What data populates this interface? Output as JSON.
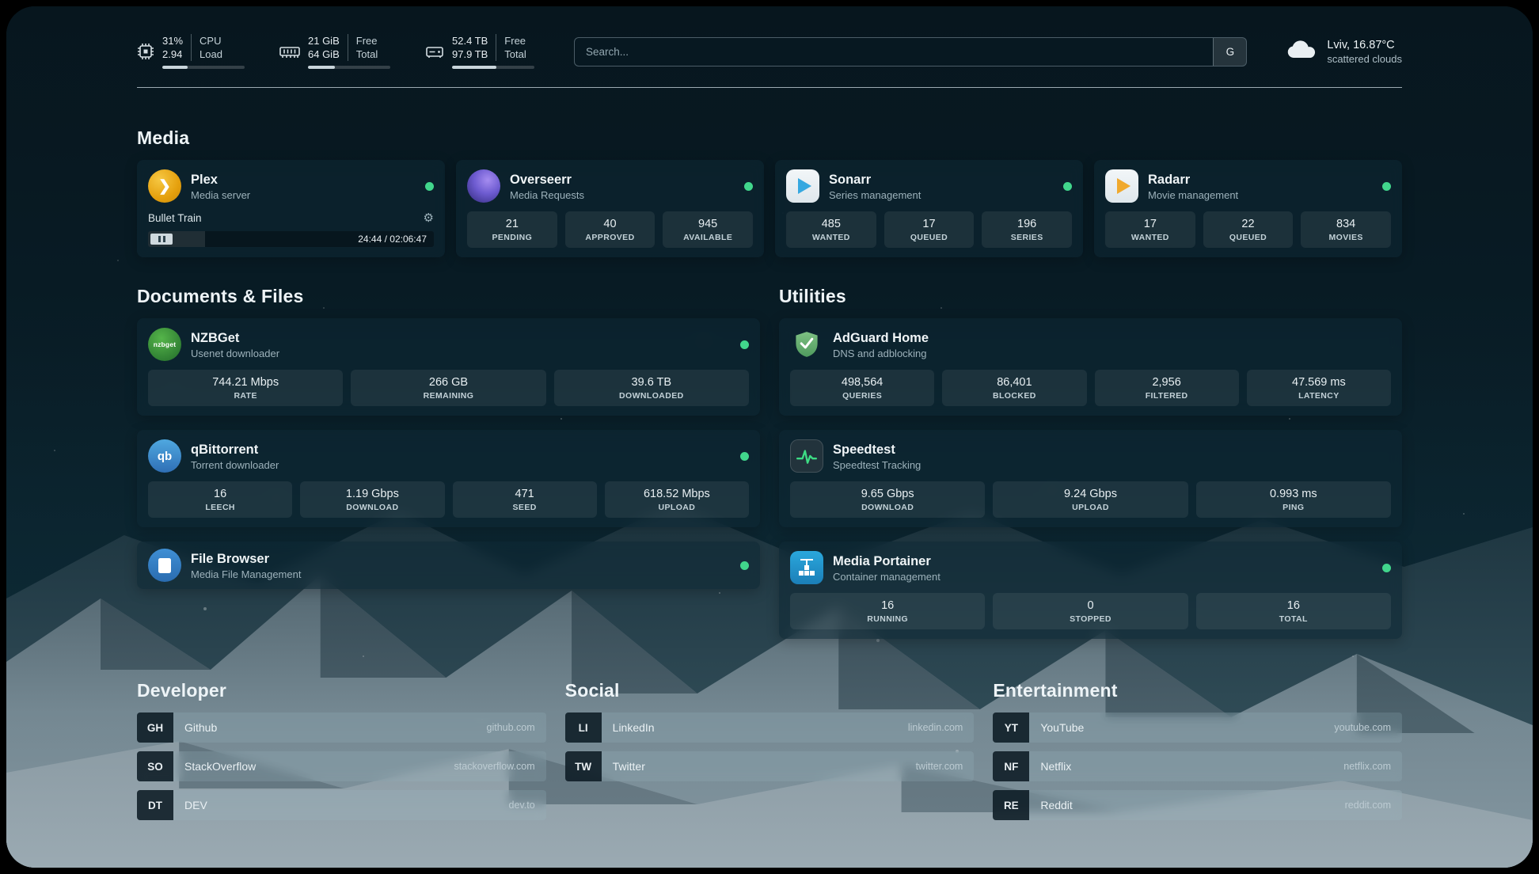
{
  "icons": {
    "plex_chevron": "❯",
    "gear": "⚙",
    "nzbget_text": "nzbget",
    "qbittorrent_text": "qb"
  },
  "topbar": {
    "cpu": {
      "value_top": "31%",
      "value_bottom": "2.94",
      "label_top": "CPU",
      "label_bottom": "Load",
      "percent": 31
    },
    "ram": {
      "value_top": "21 GiB",
      "value_bottom": "64 GiB",
      "label_top": "Free",
      "label_bottom": "Total",
      "percent": 33
    },
    "disk": {
      "value_top": "52.4 TB",
      "value_bottom": "97.9 TB",
      "label_top": "Free",
      "label_bottom": "Total",
      "percent": 54
    },
    "search": {
      "placeholder": "Search...",
      "button_label": "G"
    },
    "weather": {
      "location": "Lviv, 16.87°C",
      "condition": "scattered clouds"
    }
  },
  "sections": {
    "media": {
      "title": "Media",
      "plex": {
        "name": "Plex",
        "subtitle": "Media server",
        "now_playing": "Bullet Train",
        "time": "24:44 / 02:06:47",
        "progress_percent": 20
      },
      "overseerr": {
        "name": "Overseerr",
        "subtitle": "Media Requests",
        "stats": [
          {
            "value": "21",
            "label": "PENDING"
          },
          {
            "value": "40",
            "label": "APPROVED"
          },
          {
            "value": "945",
            "label": "AVAILABLE"
          }
        ]
      },
      "sonarr": {
        "name": "Sonarr",
        "subtitle": "Series management",
        "stats": [
          {
            "value": "485",
            "label": "WANTED"
          },
          {
            "value": "17",
            "label": "QUEUED"
          },
          {
            "value": "196",
            "label": "SERIES"
          }
        ]
      },
      "radarr": {
        "name": "Radarr",
        "subtitle": "Movie management",
        "stats": [
          {
            "value": "17",
            "label": "WANTED"
          },
          {
            "value": "22",
            "label": "QUEUED"
          },
          {
            "value": "834",
            "label": "MOVIES"
          }
        ]
      }
    },
    "documents": {
      "title": "Documents & Files",
      "nzbget": {
        "name": "NZBGet",
        "subtitle": "Usenet downloader",
        "stats": [
          {
            "value": "744.21 Mbps",
            "label": "RATE"
          },
          {
            "value": "266 GB",
            "label": "REMAINING"
          },
          {
            "value": "39.6 TB",
            "label": "DOWNLOADED"
          }
        ]
      },
      "qbittorrent": {
        "name": "qBittorrent",
        "subtitle": "Torrent downloader",
        "stats": [
          {
            "value": "16",
            "label": "LEECH"
          },
          {
            "value": "1.19 Gbps",
            "label": "DOWNLOAD"
          },
          {
            "value": "471",
            "label": "SEED"
          },
          {
            "value": "618.52 Mbps",
            "label": "UPLOAD"
          }
        ]
      },
      "filebrowser": {
        "name": "File Browser",
        "subtitle": "Media File Management"
      }
    },
    "utilities": {
      "title": "Utilities",
      "adguard": {
        "name": "AdGuard Home",
        "subtitle": "DNS and adblocking",
        "stats": [
          {
            "value": "498,564",
            "label": "QUERIES"
          },
          {
            "value": "86,401",
            "label": "BLOCKED"
          },
          {
            "value": "2,956",
            "label": "FILTERED"
          },
          {
            "value": "47.569 ms",
            "label": "LATENCY"
          }
        ]
      },
      "speedtest": {
        "name": "Speedtest",
        "subtitle": "Speedtest Tracking",
        "stats": [
          {
            "value": "9.65 Gbps",
            "label": "DOWNLOAD"
          },
          {
            "value": "9.24 Gbps",
            "label": "UPLOAD"
          },
          {
            "value": "0.993 ms",
            "label": "PING"
          }
        ]
      },
      "portainer": {
        "name": "Media Portainer",
        "subtitle": "Container management",
        "stats": [
          {
            "value": "16",
            "label": "RUNNING"
          },
          {
            "value": "0",
            "label": "STOPPED"
          },
          {
            "value": "16",
            "label": "TOTAL"
          }
        ]
      }
    },
    "bookmarks": {
      "developer": {
        "title": "Developer",
        "items": [
          {
            "abbr": "GH",
            "name": "Github",
            "url": "github.com"
          },
          {
            "abbr": "SO",
            "name": "StackOverflow",
            "url": "stackoverflow.com"
          },
          {
            "abbr": "DT",
            "name": "DEV",
            "url": "dev.to"
          }
        ]
      },
      "social": {
        "title": "Social",
        "items": [
          {
            "abbr": "LI",
            "name": "LinkedIn",
            "url": "linkedin.com"
          },
          {
            "abbr": "TW",
            "name": "Twitter",
            "url": "twitter.com"
          }
        ]
      },
      "entertainment": {
        "title": "Entertainment",
        "items": [
          {
            "abbr": "YT",
            "name": "YouTube",
            "url": "youtube.com"
          },
          {
            "abbr": "NF",
            "name": "Netflix",
            "url": "netflix.com"
          },
          {
            "abbr": "RE",
            "name": "Reddit",
            "url": "reddit.com"
          }
        ]
      }
    }
  },
  "colors": {
    "status_green": "#41d68c",
    "background_teal": "#0e2e3a"
  }
}
